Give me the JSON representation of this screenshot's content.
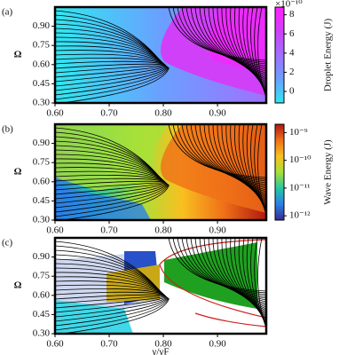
{
  "chart_data": [
    {
      "type": "contour",
      "panel_label": "(a)",
      "ylabel": "Ω",
      "xlim": [
        0.6,
        0.99
      ],
      "ylim": [
        0.3,
        1.05
      ],
      "xticks": [
        {
          "value": 0.6,
          "label": "0.60"
        },
        {
          "value": 0.7,
          "label": "0.70"
        },
        {
          "value": 0.8,
          "label": "0.80"
        },
        {
          "value": 0.9,
          "label": "0.90"
        }
      ],
      "yticks": [
        {
          "value": 0.3,
          "label": "0.30"
        },
        {
          "value": 0.45,
          "label": "0.45"
        },
        {
          "value": 0.6,
          "label": "0.60"
        },
        {
          "value": 0.75,
          "label": "0.75"
        },
        {
          "value": 0.9,
          "label": "0.90"
        }
      ],
      "colorbar": {
        "label": "Droplet Energy (J)",
        "offset_label": "×10⁻¹⁰",
        "lim": [
          -1.2,
          8.8
        ],
        "ticks": [
          0,
          2,
          4,
          6,
          8
        ],
        "log": false,
        "colors": [
          "#30e8f0",
          "#6aa0ff",
          "#a070ff",
          "#d040f8",
          "#ff20ff"
        ]
      }
    },
    {
      "type": "contour",
      "panel_label": "(b)",
      "ylabel": "Ω",
      "xlim": [
        0.6,
        0.99
      ],
      "ylim": [
        0.3,
        1.05
      ],
      "xticks": [
        {
          "value": 0.6,
          "label": "0.60"
        },
        {
          "value": 0.7,
          "label": "0.70"
        },
        {
          "value": 0.8,
          "label": "0.80"
        },
        {
          "value": 0.9,
          "label": "0.90"
        }
      ],
      "yticks": [
        {
          "value": 0.3,
          "label": "0.30"
        },
        {
          "value": 0.45,
          "label": "0.45"
        },
        {
          "value": 0.6,
          "label": "0.60"
        },
        {
          "value": 0.75,
          "label": "0.75"
        },
        {
          "value": 0.9,
          "label": "0.90"
        }
      ],
      "colorbar": {
        "label": "Wave Energy (J)",
        "lim": [
          7e-13,
          2e-09
        ],
        "log": true,
        "ticks": [
          {
            "value": 1e-12,
            "label": "10⁻¹²"
          },
          {
            "value": 1e-11,
            "label": "10⁻¹¹"
          },
          {
            "value": 1e-10,
            "label": "10⁻¹⁰"
          },
          {
            "value": 1e-09,
            "label": "10⁻⁹"
          }
        ],
        "colors": [
          "#3a2a90",
          "#2a80e8",
          "#28c8a0",
          "#a8e038",
          "#f8c020",
          "#f07018",
          "#b01810"
        ]
      }
    },
    {
      "type": "contour",
      "panel_label": "(c)",
      "ylabel": "Ω",
      "xlabel": "γ/γF",
      "xlim": [
        0.6,
        0.99
      ],
      "ylim": [
        0.3,
        1.05
      ],
      "xticks": [
        {
          "value": 0.6,
          "label": "0.60"
        },
        {
          "value": 0.7,
          "label": "0.70"
        },
        {
          "value": 0.8,
          "label": "0.80"
        },
        {
          "value": 0.9,
          "label": "0.90"
        }
      ],
      "yticks": [
        {
          "value": 0.3,
          "label": "0.30"
        },
        {
          "value": 0.45,
          "label": "0.45"
        },
        {
          "value": 0.6,
          "label": "0.60"
        },
        {
          "value": 0.75,
          "label": "0.75"
        },
        {
          "value": 0.9,
          "label": "0.90"
        }
      ]
    }
  ]
}
